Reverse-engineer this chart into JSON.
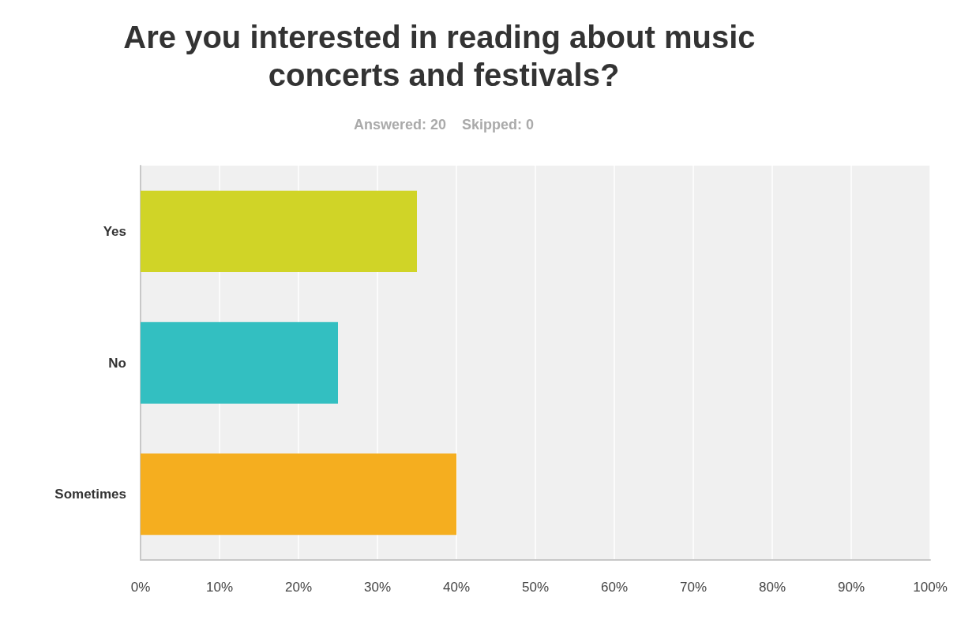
{
  "chart_data": {
    "type": "bar",
    "orientation": "horizontal",
    "title": "Are you interested in reading about music concerts and festivals?",
    "subtitle": "Answered: 20    Skipped: 0",
    "categories": [
      "Yes",
      "No",
      "Sometimes"
    ],
    "values": [
      35,
      25,
      40
    ],
    "colors": [
      "#d0d427",
      "#33bfc1",
      "#f5ae1f"
    ],
    "xlim": [
      0,
      100
    ],
    "xticks": [
      {
        "value": 0,
        "label": "0%"
      },
      {
        "value": 10,
        "label": "10%"
      },
      {
        "value": 20,
        "label": "20%"
      },
      {
        "value": 30,
        "label": "30%"
      },
      {
        "value": 40,
        "label": "40%"
      },
      {
        "value": 50,
        "label": "50%"
      },
      {
        "value": 60,
        "label": "60%"
      },
      {
        "value": 70,
        "label": "70%"
      },
      {
        "value": 80,
        "label": "80%"
      },
      {
        "value": 90,
        "label": "90%"
      },
      {
        "value": 100,
        "label": "100%"
      }
    ],
    "grid": "x"
  }
}
